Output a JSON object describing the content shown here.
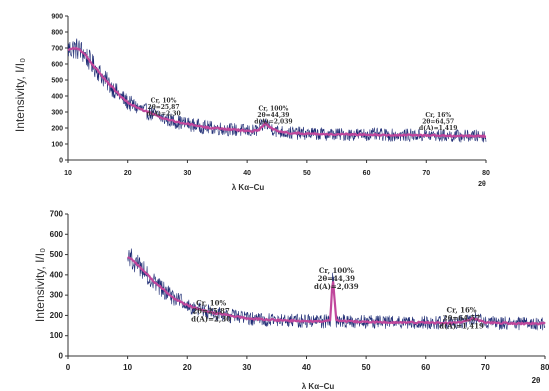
{
  "chart_data": [
    {
      "type": "line",
      "ylabel": "Intensivity, I/I₀",
      "xlabel": "λ Kα–Cu",
      "x_axis_symbol": "2θ",
      "xlim": [
        10,
        80
      ],
      "ylim": [
        0,
        900
      ],
      "xticks": [
        "10",
        "20",
        "30",
        "40",
        "50",
        "60",
        "70",
        "80"
      ],
      "yticks": [
        "0",
        "100",
        "200",
        "300",
        "400",
        "500",
        "600",
        "700",
        "800",
        "900"
      ],
      "series_color": "#c0479c",
      "noise_color": "#1c2a73",
      "series": [
        {
          "x": [
            10,
            11,
            12,
            13,
            14,
            15,
            16,
            17,
            18,
            19,
            20,
            22,
            24,
            26,
            28,
            30,
            33,
            36,
            39,
            41,
            42,
            43,
            44,
            45,
            47,
            50,
            55,
            60,
            65,
            70,
            75,
            80
          ],
          "values": [
            690,
            700,
            690,
            650,
            600,
            560,
            510,
            470,
            430,
            390,
            360,
            320,
            290,
            260,
            240,
            225,
            205,
            195,
            185,
            180,
            190,
            230,
            200,
            180,
            170,
            165,
            160,
            160,
            155,
            155,
            150,
            150
          ]
        }
      ],
      "annotations": [
        {
          "lines": [
            "Cr, 10%",
            "2θ=25,87",
            "d(A)=2,30"
          ],
          "x": 26,
          "y": 360
        },
        {
          "lines": [
            "Cr, 100%",
            "2θ=44,39",
            "d(A)=2,039"
          ],
          "x": 44.4,
          "y": 310
        },
        {
          "lines": [
            "Cr, 16%",
            "2θ=64,57",
            "d(A)=1,419"
          ],
          "x": 72,
          "y": 270
        }
      ]
    },
    {
      "type": "line",
      "ylabel": "Intensivity, I/I₀",
      "xlabel": "λ Kα–Cu",
      "x_axis_symbol": "2θ",
      "xlim": [
        0,
        80
      ],
      "ylim": [
        0,
        700
      ],
      "xticks": [
        "0",
        "10",
        "20",
        "30",
        "40",
        "50",
        "60",
        "70",
        "80"
      ],
      "yticks": [
        "0",
        "100",
        "200",
        "300",
        "400",
        "500",
        "600",
        "700"
      ],
      "series_color": "#c0479c",
      "noise_color": "#1c2a73",
      "series": [
        {
          "x": [
            10,
            11,
            12,
            13,
            14,
            15,
            16,
            17,
            18,
            20,
            22,
            24,
            26,
            28,
            30,
            33,
            36,
            40,
            43,
            44,
            44.4,
            45,
            47,
            50,
            55,
            60,
            65,
            67,
            68,
            70,
            75,
            80
          ],
          "values": [
            490,
            470,
            440,
            410,
            380,
            350,
            330,
            300,
            280,
            250,
            230,
            215,
            205,
            195,
            185,
            180,
            175,
            172,
            170,
            180,
            395,
            175,
            170,
            168,
            165,
            165,
            162,
            175,
            185,
            165,
            160,
            160
          ]
        }
      ],
      "annotations": [
        {
          "lines": [
            "Cr, 10%",
            "2θ=25,87",
            "d(A)=2,30"
          ],
          "x": 24,
          "y": 250
        },
        {
          "lines": [
            "Cr, 100%",
            "2θ=44,39",
            "d(A)=2,039"
          ],
          "x": 45,
          "y": 410
        },
        {
          "lines": [
            "Cr, 16%",
            "2θ=64,57",
            "d(A)=1,419"
          ],
          "x": 66,
          "y": 215
        }
      ]
    }
  ]
}
